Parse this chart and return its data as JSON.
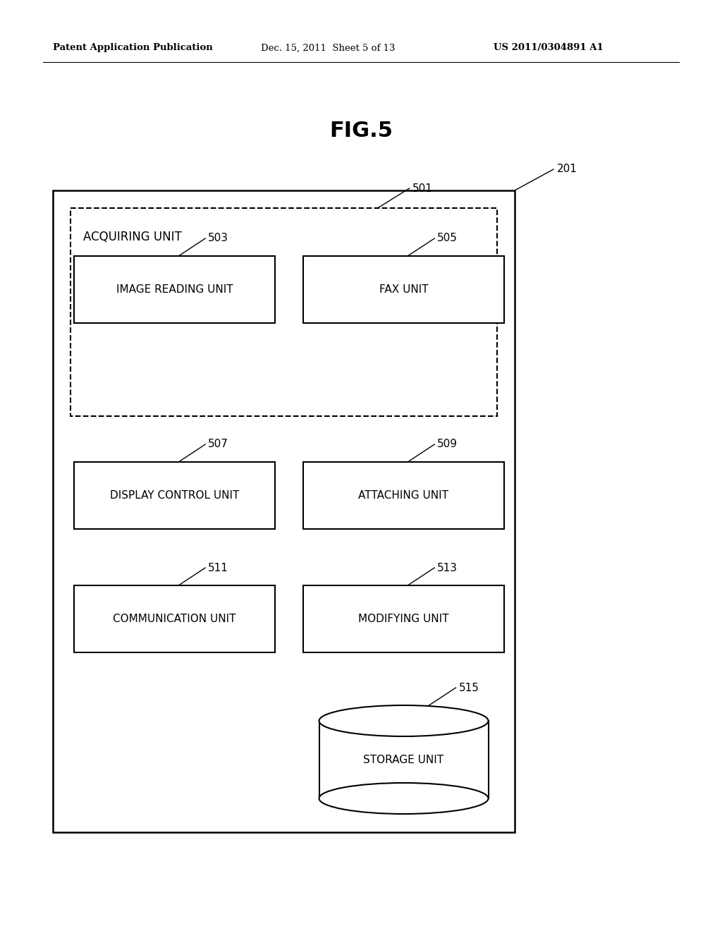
{
  "header_left": "Patent Application Publication",
  "header_mid": "Dec. 15, 2011  Sheet 5 of 13",
  "header_right": "US 2011/0304891 A1",
  "fig_title": "FIG.5",
  "bg_color": "#ffffff",
  "outer_box_label": "201",
  "dashed_box_label": "501",
  "dashed_box_text": "ACQUIRING UNIT",
  "box_503": {
    "id": "503",
    "label": "IMAGE READING UNIT"
  },
  "box_505": {
    "id": "505",
    "label": "FAX UNIT"
  },
  "box_507": {
    "id": "507",
    "label": "DISPLAY CONTROL UNIT"
  },
  "box_509": {
    "id": "509",
    "label": "ATTACHING UNIT"
  },
  "box_511": {
    "id": "511",
    "label": "COMMUNICATION UNIT"
  },
  "box_513": {
    "id": "513",
    "label": "MODIFYING UNIT"
  },
  "cylinder_id": "515",
  "cylinder_label": "STORAGE UNIT"
}
